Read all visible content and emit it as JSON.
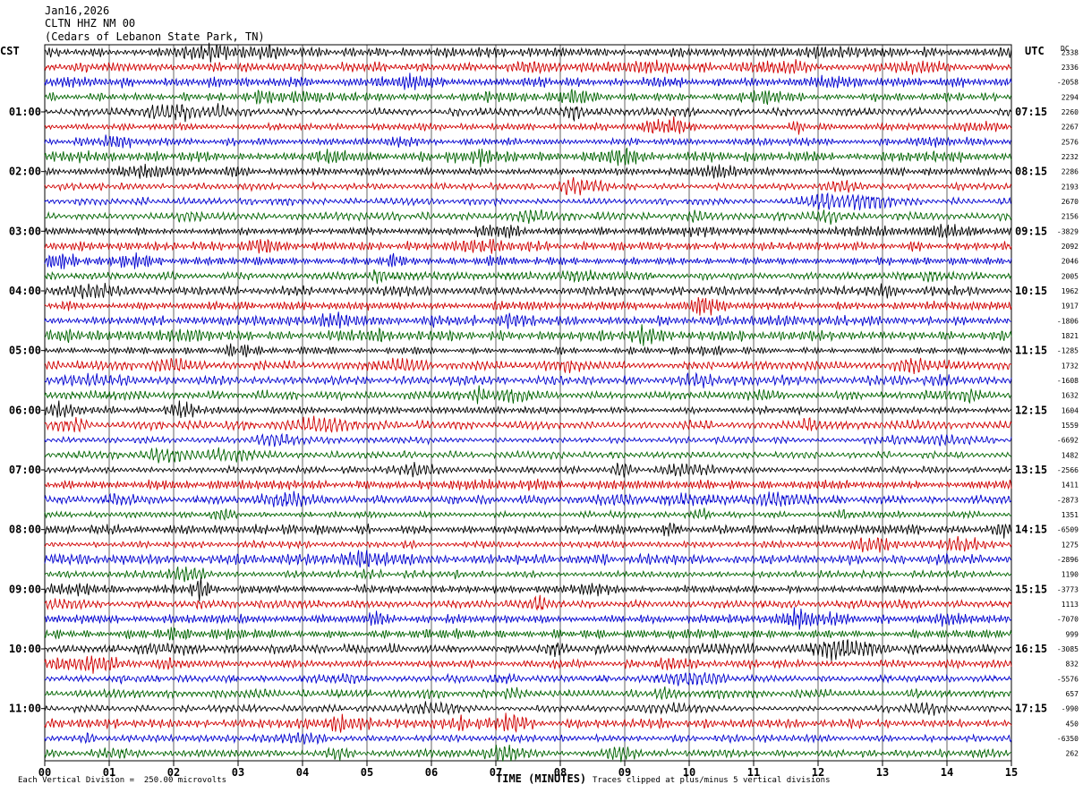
{
  "header": {
    "date": "Jan16,2026",
    "station": "CLTN HHZ NM 00",
    "location": "(Cedars of Lebanon State Park, TN)"
  },
  "left_tz": "CST",
  "right_tz": "UTC",
  "dc_label": "DC",
  "footer": {
    "scale_note": "Each Vertical Division =  250.00 microvolts",
    "clip_note": "Traces clipped at plus/minus 5 vertical divisions"
  },
  "colors": {
    "black": "#000000",
    "red": "#d00000",
    "blue": "#0000d0",
    "green": "#006400",
    "grid": "#000000"
  },
  "chart_data": {
    "type": "line",
    "xlabel": "TIME (MINUTES)",
    "xlim": [
      0,
      15
    ],
    "x_ticks": [
      "00",
      "01",
      "02",
      "03",
      "04",
      "05",
      "06",
      "07",
      "08",
      "09",
      "10",
      "11",
      "12",
      "13",
      "14",
      "15"
    ],
    "minutes_per_trace": 15,
    "trace_count": 48,
    "color_cycle": [
      "black",
      "red",
      "blue",
      "green"
    ],
    "left_hour_labels": [
      "01:00",
      "02:00",
      "03:00",
      "04:00",
      "05:00",
      "06:00",
      "07:00",
      "08:00",
      "09:00",
      "10:00",
      "11:00"
    ],
    "right_hour_labels": [
      "07:15",
      "08:15",
      "09:15",
      "10:15",
      "11:15",
      "12:15",
      "13:15",
      "14:15",
      "15:15",
      "16:15",
      "17:15"
    ],
    "dc_offsets": [
      "2338",
      "2336",
      "-2058",
      "2294",
      "2260",
      "2267",
      "2576",
      "2232",
      "2286",
      "2193",
      "2670",
      "2156",
      "-3829",
      "2092",
      "2046",
      "2005",
      "1962",
      "1917",
      "-1806",
      "1821",
      "-1285",
      "1732",
      "-1608",
      "1632",
      "1604",
      "1559",
      "-6692",
      "1482",
      "-2566",
      "1411",
      "-2873",
      "1351",
      "-6509",
      "1275",
      "-2896",
      "1190",
      "-3773",
      "1113",
      "-7070",
      "999",
      "-3085",
      "832",
      "-5576",
      "657",
      "-990",
      "450",
      "-6350",
      "262"
    ]
  }
}
